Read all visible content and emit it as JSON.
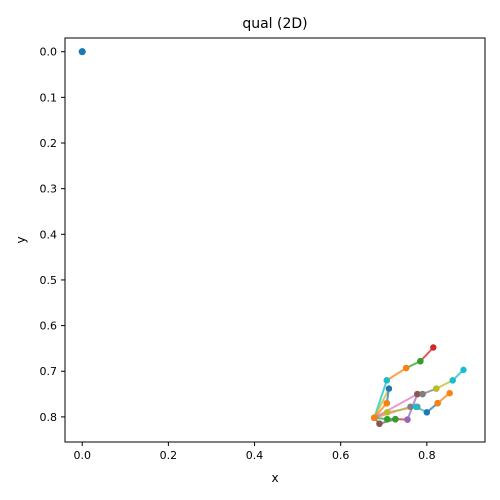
{
  "chart_data": {
    "type": "line",
    "title": "qual (2D)",
    "xlabel": "x",
    "ylabel": "y",
    "xlim": [
      -0.04,
      0.935
    ],
    "ylim": [
      0.855,
      -0.03
    ],
    "y_axis_inverted": true,
    "xticks": [
      0.0,
      0.2,
      0.4,
      0.6,
      0.8
    ],
    "xtick_labels": [
      "0.0",
      "0.2",
      "0.4",
      "0.6",
      "0.8"
    ],
    "yticks": [
      0.0,
      0.1,
      0.2,
      0.3,
      0.4,
      0.5,
      0.6,
      0.7,
      0.8
    ],
    "ytick_labels": [
      "0.0",
      "0.1",
      "0.2",
      "0.3",
      "0.4",
      "0.5",
      "0.6",
      "0.7",
      "0.8"
    ],
    "grid": false,
    "legend": false,
    "marker_color": "#1f77b4",
    "origin_points": [
      [
        0,
        0
      ],
      [
        0,
        0
      ],
      [
        0,
        0
      ],
      [
        0,
        0
      ]
    ],
    "series": [
      {
        "color": "#d62728",
        "points": [
          [
            0.815,
            0.648
          ],
          [
            0.785,
            0.678
          ]
        ]
      },
      {
        "color": "#2ca02c",
        "points": [
          [
            0.785,
            0.678
          ],
          [
            0.752,
            0.693
          ]
        ]
      },
      {
        "color": "#ff7f0e",
        "points": [
          [
            0.752,
            0.693
          ],
          [
            0.707,
            0.72
          ]
        ]
      },
      {
        "color": "#17becf",
        "points": [
          [
            0.707,
            0.72
          ],
          [
            0.678,
            0.802
          ]
        ]
      },
      {
        "color": "#bcbd22",
        "points": [
          [
            0.678,
            0.802
          ],
          [
            0.712,
            0.738
          ]
        ]
      },
      {
        "color": "#1f77b4",
        "points": [
          [
            0.678,
            0.802
          ],
          [
            0.69,
            0.815
          ]
        ]
      },
      {
        "color": "#8c564b",
        "points": [
          [
            0.69,
            0.815
          ],
          [
            0.727,
            0.805
          ]
        ]
      },
      {
        "color": "#d62728",
        "points": [
          [
            0.727,
            0.805
          ],
          [
            0.755,
            0.806
          ]
        ]
      },
      {
        "color": "#9467bd",
        "points": [
          [
            0.755,
            0.806
          ],
          [
            0.778,
            0.75
          ]
        ]
      },
      {
        "color": "#e377c2",
        "points": [
          [
            0.678,
            0.802
          ],
          [
            0.762,
            0.778
          ]
        ]
      },
      {
        "color": "#7f7f7f",
        "points": [
          [
            0.762,
            0.778
          ],
          [
            0.778,
            0.778
          ]
        ]
      },
      {
        "color": "#bcbd22",
        "points": [
          [
            0.678,
            0.802
          ],
          [
            0.708,
            0.79
          ]
        ]
      },
      {
        "color": "#bcbd22",
        "points": [
          [
            0.708,
            0.79
          ],
          [
            0.775,
            0.778
          ]
        ]
      },
      {
        "color": "#17becf",
        "points": [
          [
            0.775,
            0.778
          ],
          [
            0.8,
            0.79
          ]
        ]
      },
      {
        "color": "#1f77b4",
        "points": [
          [
            0.8,
            0.79
          ],
          [
            0.825,
            0.77
          ]
        ]
      },
      {
        "color": "#ff7f0e",
        "points": [
          [
            0.825,
            0.77
          ],
          [
            0.853,
            0.748
          ]
        ]
      },
      {
        "color": "#2ca02c",
        "points": [
          [
            0.678,
            0.802
          ],
          [
            0.708,
            0.805
          ]
        ]
      },
      {
        "color": "#2ca02c",
        "points": [
          [
            0.708,
            0.805
          ],
          [
            0.727,
            0.805
          ]
        ]
      },
      {
        "color": "#e377c2",
        "points": [
          [
            0.678,
            0.802
          ],
          [
            0.778,
            0.75
          ]
        ]
      },
      {
        "color": "#8c564b",
        "points": [
          [
            0.778,
            0.75
          ],
          [
            0.79,
            0.75
          ]
        ]
      },
      {
        "color": "#7f7f7f",
        "points": [
          [
            0.79,
            0.75
          ],
          [
            0.822,
            0.738
          ]
        ]
      },
      {
        "color": "#bcbd22",
        "points": [
          [
            0.822,
            0.738
          ],
          [
            0.86,
            0.72
          ]
        ]
      },
      {
        "color": "#17becf",
        "points": [
          [
            0.86,
            0.72
          ],
          [
            0.885,
            0.697
          ]
        ]
      },
      {
        "color": "#1f77b4",
        "points": [
          [
            0.712,
            0.738
          ],
          [
            0.707,
            0.77
          ]
        ]
      },
      {
        "color": "#ff7f0e",
        "points": [
          [
            0.707,
            0.77
          ],
          [
            0.678,
            0.802
          ]
        ]
      }
    ]
  }
}
